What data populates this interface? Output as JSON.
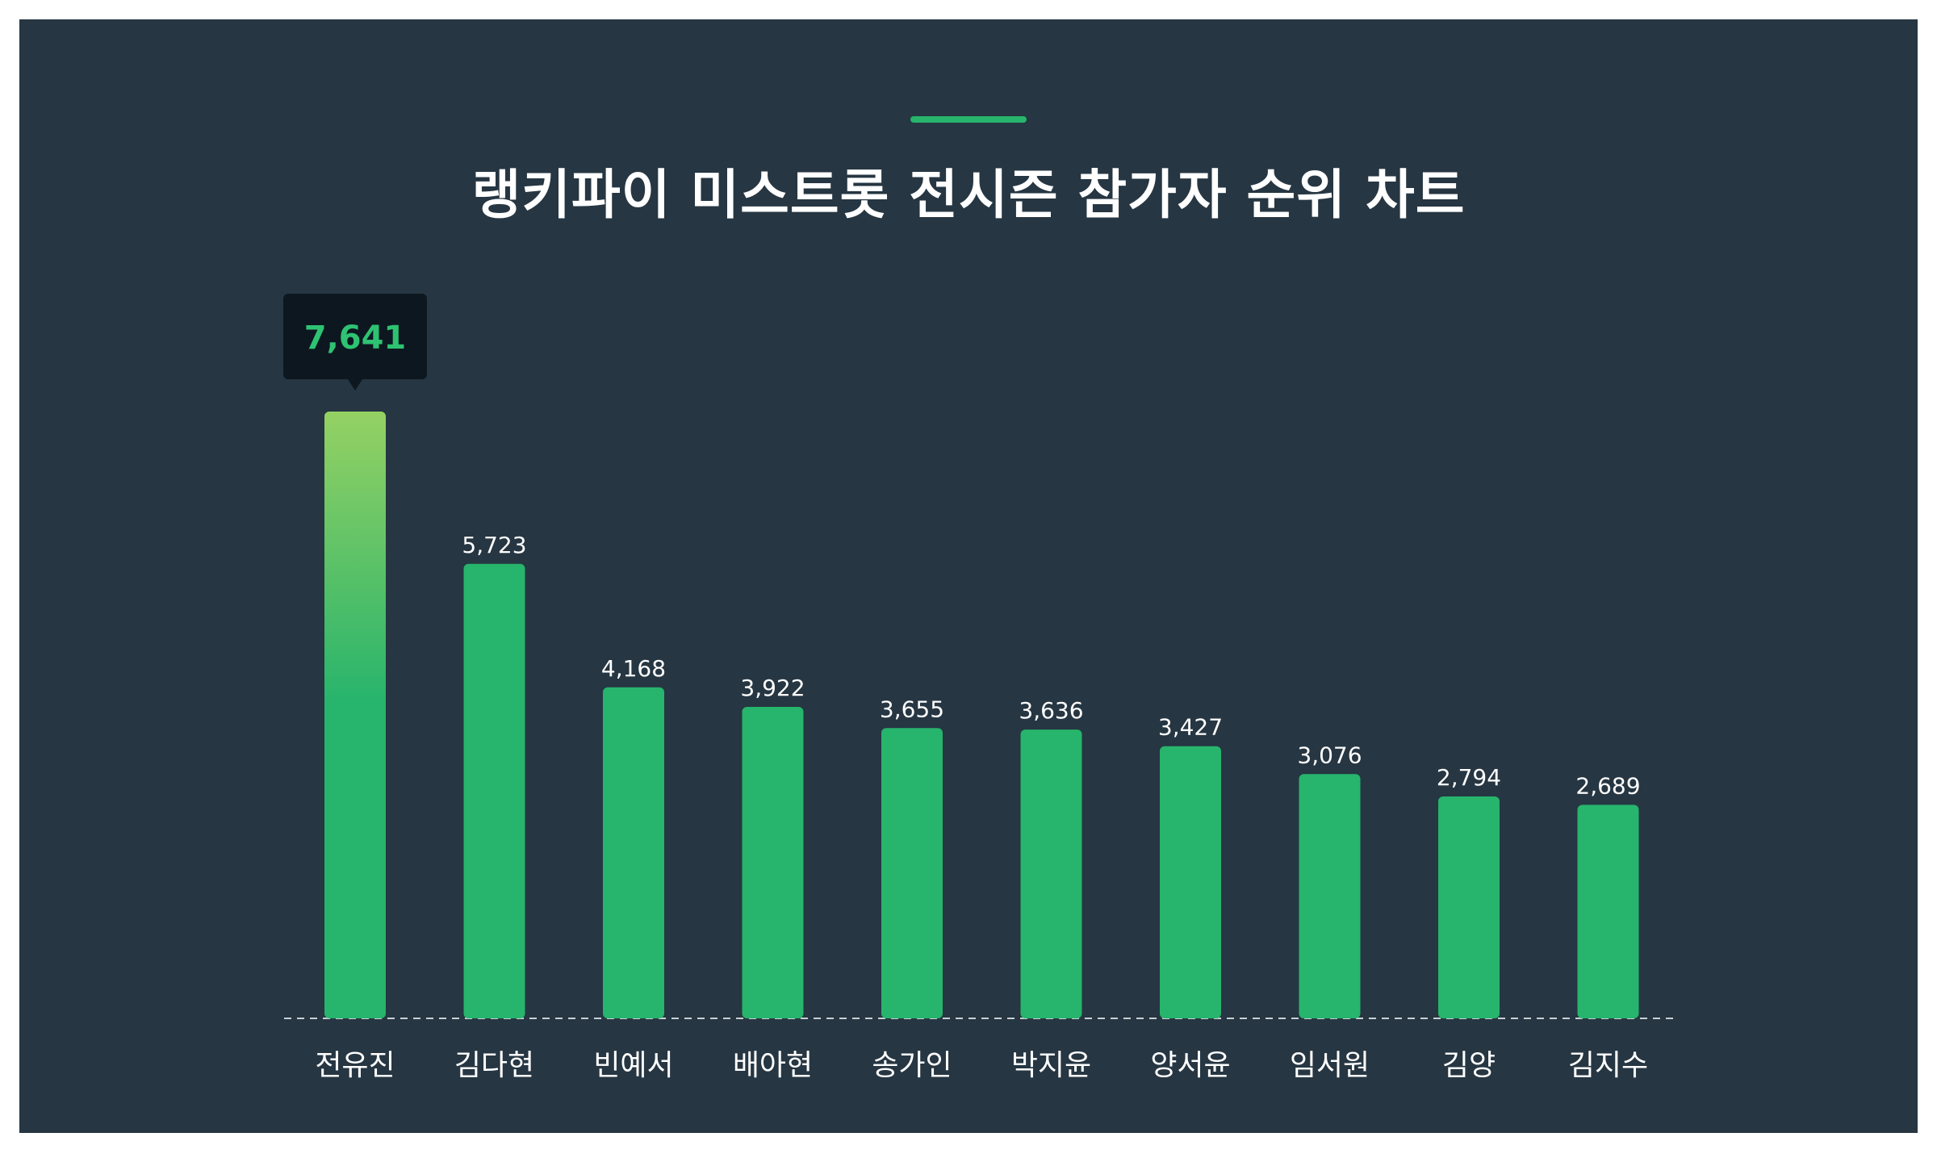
{
  "title": "랭키파이 미스트롯 전시즌 참가자 순위 차트",
  "colors": {
    "background": "#263642",
    "bar": "#27b46c",
    "bar_highlight_top": "#95d163",
    "tooltip_bg": "#0d1720",
    "tooltip_text": "#2ec272",
    "axis": "#c9d1d6"
  },
  "chart_data": {
    "type": "bar",
    "title": "랭키파이 미스트롯 전시즌 참가자 순위 차트",
    "categories": [
      "전유진",
      "김다현",
      "빈예서",
      "배아현",
      "송가인",
      "박지윤",
      "양서윤",
      "임서원",
      "김양",
      "김지수"
    ],
    "values": [
      7641,
      5723,
      4168,
      3922,
      3655,
      3636,
      3427,
      3076,
      2794,
      2689
    ],
    "value_labels": [
      "7,641",
      "5,723",
      "4,168",
      "3,922",
      "3,655",
      "3,636",
      "3,427",
      "3,076",
      "2,794",
      "2,689"
    ],
    "highlighted_index": 0,
    "ylim": [
      0,
      7641
    ],
    "grid": false,
    "xlabel": "",
    "ylabel": ""
  }
}
